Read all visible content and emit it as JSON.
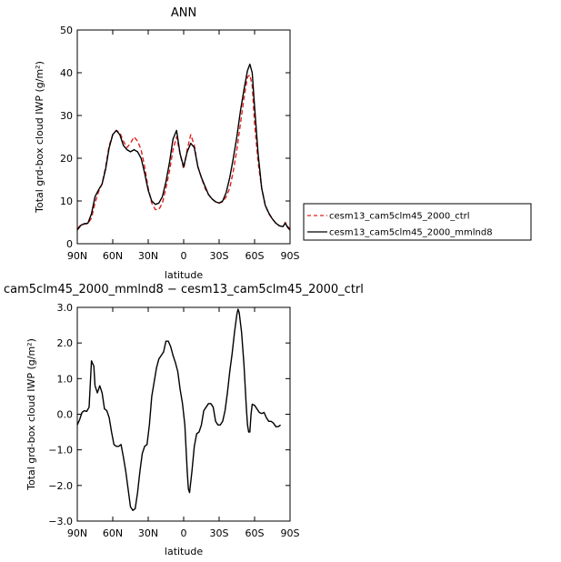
{
  "chart_data": [
    {
      "type": "line",
      "title": "ANN",
      "xlabel": "latitude",
      "ylabel": "Total grd-box cloud IWP (g/m²)",
      "xlim": [
        90,
        -90
      ],
      "ylim": [
        0,
        50
      ],
      "x_ticks": [
        {
          "value": 90,
          "label": "90N"
        },
        {
          "value": 60,
          "label": "60N"
        },
        {
          "value": 30,
          "label": "30N"
        },
        {
          "value": 0,
          "label": "0"
        },
        {
          "value": -30,
          "label": "30S"
        },
        {
          "value": -60,
          "label": "60S"
        },
        {
          "value": -90,
          "label": "90S"
        }
      ],
      "y_ticks": [
        {
          "value": 0,
          "label": "0"
        },
        {
          "value": 10,
          "label": "10"
        },
        {
          "value": 20,
          "label": "20"
        },
        {
          "value": 30,
          "label": "30"
        },
        {
          "value": 40,
          "label": "40"
        },
        {
          "value": 50,
          "label": "50"
        }
      ],
      "grid": false,
      "legend": "right",
      "series": [
        {
          "name": "cesm13_cam5clm45_2000_ctrl",
          "color": "#e02020",
          "style": "dashed",
          "points": [
            [
              90,
              3.5
            ],
            [
              87,
              4.4
            ],
            [
              84,
              4.6
            ],
            [
              81,
              4.7
            ],
            [
              78,
              6
            ],
            [
              75,
              9.5
            ],
            [
              72,
              12.2
            ],
            [
              69,
              14
            ],
            [
              66,
              18
            ],
            [
              63,
              23
            ],
            [
              60,
              25.5
            ],
            [
              57,
              26.5
            ],
            [
              54,
              26
            ],
            [
              51,
              24
            ],
            [
              48,
              22.5
            ],
            [
              45,
              23.5
            ],
            [
              42,
              25
            ],
            [
              39,
              24
            ],
            [
              36,
              22
            ],
            [
              33,
              18
            ],
            [
              30,
              13
            ],
            [
              27,
              9.5
            ],
            [
              24,
              8
            ],
            [
              21,
              8
            ],
            [
              18,
              9.5
            ],
            [
              15,
              13
            ],
            [
              12,
              17
            ],
            [
              9,
              22
            ],
            [
              6,
              25
            ],
            [
              3,
              21
            ],
            [
              0,
              17.5
            ],
            [
              -3,
              22
            ],
            [
              -6,
              25.5
            ],
            [
              -9,
              23
            ],
            [
              -12,
              18
            ],
            [
              -15,
              15.5
            ],
            [
              -18,
              13
            ],
            [
              -21,
              11.5
            ],
            [
              -24,
              10.5
            ],
            [
              -27,
              9.8
            ],
            [
              -30,
              9.5
            ],
            [
              -33,
              9.8
            ],
            [
              -36,
              11
            ],
            [
              -39,
              13
            ],
            [
              -42,
              17
            ],
            [
              -45,
              22
            ],
            [
              -48,
              28
            ],
            [
              -51,
              34
            ],
            [
              -54,
              39
            ],
            [
              -56,
              39.5
            ],
            [
              -58,
              37
            ],
            [
              -60,
              28
            ],
            [
              -63,
              19
            ],
            [
              -66,
              13
            ],
            [
              -69,
              9
            ],
            [
              -72,
              7
            ],
            [
              -75,
              5.8
            ],
            [
              -78,
              4.8
            ],
            [
              -81,
              4.2
            ],
            [
              -84,
              4
            ],
            [
              -86,
              5
            ],
            [
              -88,
              4
            ],
            [
              -90,
              3.5
            ]
          ]
        },
        {
          "name": "cesm13_cam5clm45_2000_mmlnd8",
          "color": "#000000",
          "style": "solid",
          "points": [
            [
              90,
              3.2
            ],
            [
              87,
              4.3
            ],
            [
              84,
              4.7
            ],
            [
              81,
              4.8
            ],
            [
              78,
              7
            ],
            [
              75,
              11
            ],
            [
              72,
              12.6
            ],
            [
              69,
              14
            ],
            [
              66,
              17.5
            ],
            [
              63,
              22.5
            ],
            [
              60,
              25.5
            ],
            [
              57,
              26.5
            ],
            [
              54,
              25.5
            ],
            [
              51,
              23
            ],
            [
              48,
              22
            ],
            [
              45,
              21.5
            ],
            [
              42,
              22
            ],
            [
              39,
              21.5
            ],
            [
              36,
              20
            ],
            [
              33,
              16.5
            ],
            [
              30,
              12.5
            ],
            [
              27,
              10
            ],
            [
              24,
              9.2
            ],
            [
              21,
              9.5
            ],
            [
              18,
              11
            ],
            [
              15,
              14.5
            ],
            [
              12,
              19
            ],
            [
              9,
              24.5
            ],
            [
              6,
              26.5
            ],
            [
              3,
              21
            ],
            [
              0,
              18
            ],
            [
              -3,
              21.5
            ],
            [
              -6,
              23.5
            ],
            [
              -9,
              22.5
            ],
            [
              -12,
              18
            ],
            [
              -15,
              15.5
            ],
            [
              -18,
              13.5
            ],
            [
              -21,
              11.5
            ],
            [
              -24,
              10.5
            ],
            [
              -27,
              9.8
            ],
            [
              -30,
              9.5
            ],
            [
              -33,
              10
            ],
            [
              -36,
              12
            ],
            [
              -39,
              15.5
            ],
            [
              -42,
              20
            ],
            [
              -45,
              25
            ],
            [
              -48,
              31
            ],
            [
              -51,
              36
            ],
            [
              -54,
              40.5
            ],
            [
              -56,
              42
            ],
            [
              -58,
              40
            ],
            [
              -60,
              32
            ],
            [
              -63,
              21
            ],
            [
              -66,
              13
            ],
            [
              -69,
              9
            ],
            [
              -72,
              7.2
            ],
            [
              -75,
              5.8
            ],
            [
              -78,
              4.8
            ],
            [
              -81,
              4.2
            ],
            [
              -84,
              4
            ],
            [
              -86,
              4.8
            ],
            [
              -88,
              3.8
            ],
            [
              -90,
              3.2
            ]
          ]
        }
      ]
    },
    {
      "type": "line",
      "title": "cam5clm45_2000_mmlnd8 − cesm13_cam5clm45_2000_ctrl",
      "xlabel": "latitude",
      "ylabel": "Total grd-box cloud IWP (g/m²)",
      "xlim": [
        90,
        -90
      ],
      "ylim": [
        -3,
        3
      ],
      "x_ticks": [
        {
          "value": 90,
          "label": "90N"
        },
        {
          "value": 60,
          "label": "60N"
        },
        {
          "value": 30,
          "label": "30N"
        },
        {
          "value": 0,
          "label": "0"
        },
        {
          "value": -30,
          "label": "30S"
        },
        {
          "value": -60,
          "label": "60S"
        },
        {
          "value": -90,
          "label": "90S"
        }
      ],
      "y_ticks": [
        {
          "value": -3,
          "label": "−3.0"
        },
        {
          "value": -2,
          "label": "−2.0"
        },
        {
          "value": -1,
          "label": "−1.0"
        },
        {
          "value": 0,
          "label": "0.0"
        },
        {
          "value": 1,
          "label": "1.0"
        },
        {
          "value": 2,
          "label": "2.0"
        },
        {
          "value": 3,
          "label": "3.0"
        }
      ],
      "grid": false,
      "series": [
        {
          "color": "#000000",
          "style": "solid",
          "points": [
            [
              90,
              -0.3
            ],
            [
              88,
              -0.15
            ],
            [
              86,
              0.05
            ],
            [
              84,
              0.1
            ],
            [
              82,
              0.08
            ],
            [
              80,
              0.2
            ],
            [
              78,
              1.5
            ],
            [
              76,
              1.35
            ],
            [
              75,
              0.8
            ],
            [
              73,
              0.6
            ],
            [
              71,
              0.8
            ],
            [
              69,
              0.6
            ],
            [
              67,
              0.15
            ],
            [
              65,
              0.1
            ],
            [
              63,
              -0.1
            ],
            [
              61,
              -0.5
            ],
            [
              59,
              -0.85
            ],
            [
              57,
              -0.9
            ],
            [
              55,
              -0.9
            ],
            [
              53,
              -0.85
            ],
            [
              51,
              -1.2
            ],
            [
              49,
              -1.6
            ],
            [
              47,
              -2.1
            ],
            [
              45,
              -2.6
            ],
            [
              43,
              -2.7
            ],
            [
              41,
              -2.65
            ],
            [
              39,
              -2.2
            ],
            [
              37,
              -1.6
            ],
            [
              35,
              -1.1
            ],
            [
              33,
              -0.9
            ],
            [
              31,
              -0.85
            ],
            [
              29,
              -0.3
            ],
            [
              27,
              0.5
            ],
            [
              25,
              0.9
            ],
            [
              23,
              1.3
            ],
            [
              21,
              1.55
            ],
            [
              19,
              1.65
            ],
            [
              17,
              1.75
            ],
            [
              15,
              2.05
            ],
            [
              13,
              2.05
            ],
            [
              11,
              1.9
            ],
            [
              9,
              1.65
            ],
            [
              7,
              1.45
            ],
            [
              5,
              1.2
            ],
            [
              3,
              0.7
            ],
            [
              1,
              0.3
            ],
            [
              -1,
              -0.3
            ],
            [
              -3,
              -1.6
            ],
            [
              -4,
              -2.1
            ],
            [
              -5,
              -2.2
            ],
            [
              -7,
              -1.6
            ],
            [
              -9,
              -0.9
            ],
            [
              -11,
              -0.55
            ],
            [
              -13,
              -0.5
            ],
            [
              -15,
              -0.3
            ],
            [
              -17,
              0.1
            ],
            [
              -19,
              0.2
            ],
            [
              -21,
              0.3
            ],
            [
              -23,
              0.3
            ],
            [
              -25,
              0.2
            ],
            [
              -27,
              -0.2
            ],
            [
              -29,
              -0.3
            ],
            [
              -31,
              -0.3
            ],
            [
              -33,
              -0.2
            ],
            [
              -35,
              0.1
            ],
            [
              -37,
              0.6
            ],
            [
              -39,
              1.2
            ],
            [
              -41,
              1.7
            ],
            [
              -43,
              2.3
            ],
            [
              -45,
              2.8
            ],
            [
              -46,
              2.95
            ],
            [
              -47,
              2.85
            ],
            [
              -49,
              2.3
            ],
            [
              -51,
              1.4
            ],
            [
              -53,
              0.2
            ],
            [
              -54,
              -0.3
            ],
            [
              -55,
              -0.5
            ],
            [
              -56,
              -0.5
            ],
            [
              -57,
              0
            ],
            [
              -58,
              0.28
            ],
            [
              -60,
              0.25
            ],
            [
              -62,
              0.15
            ],
            [
              -64,
              0.05
            ],
            [
              -66,
              0.02
            ],
            [
              -68,
              0.05
            ],
            [
              -70,
              -0.1
            ],
            [
              -72,
              -0.2
            ],
            [
              -74,
              -0.2
            ],
            [
              -76,
              -0.25
            ],
            [
              -78,
              -0.35
            ],
            [
              -80,
              -0.35
            ],
            [
              -82,
              -0.3
            ]
          ]
        }
      ]
    }
  ]
}
